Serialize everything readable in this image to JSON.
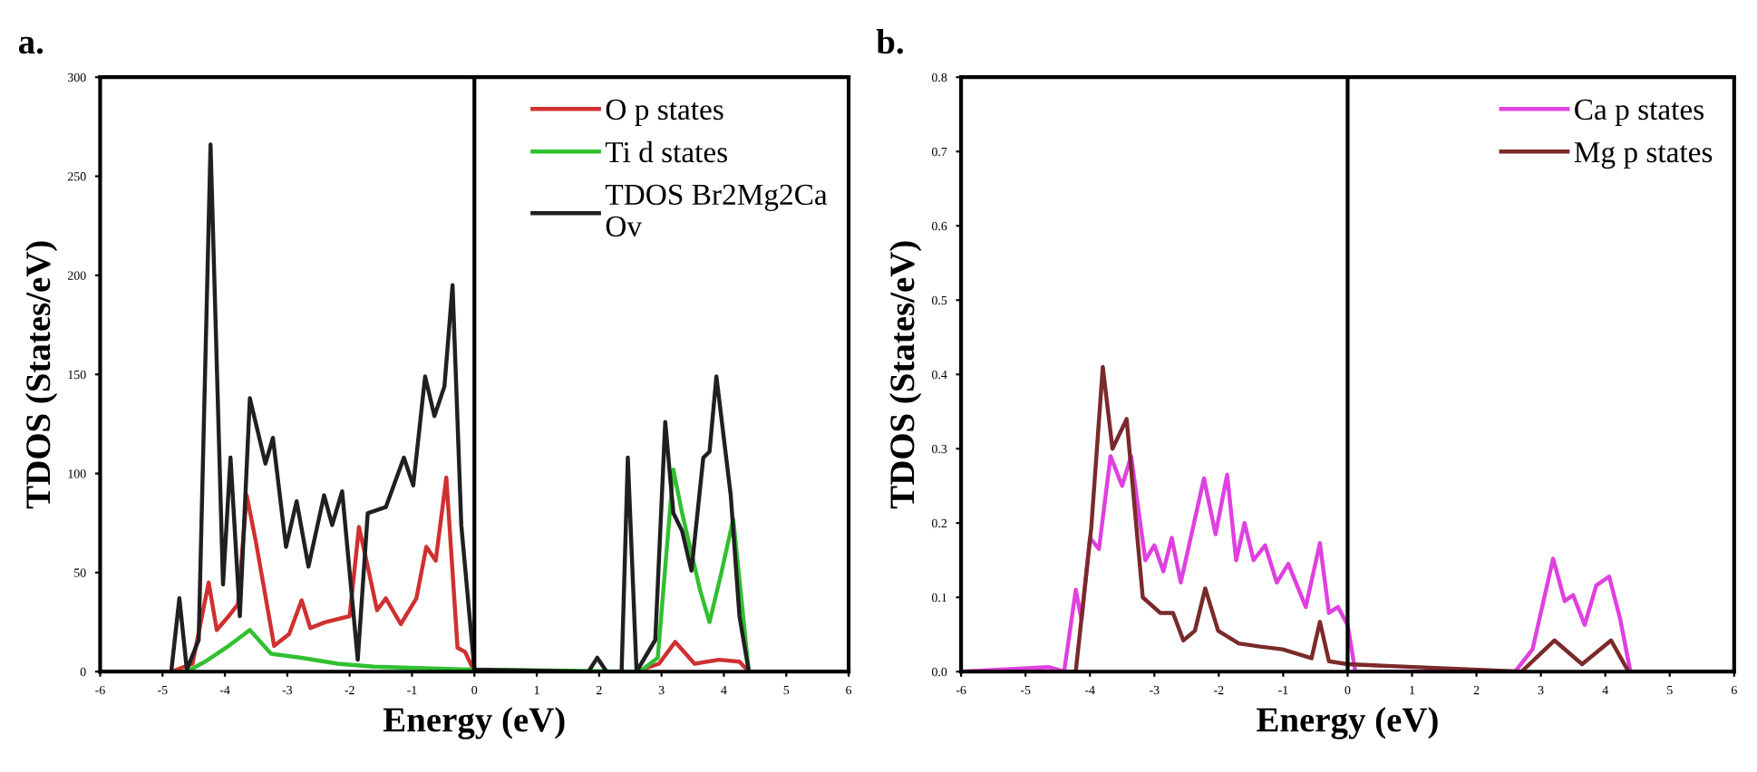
{
  "chart_data": [
    {
      "type": "line",
      "title": "a.",
      "xlabel": "Energy (eV)",
      "ylabel": "TDOS (States/eV)",
      "xlim": [
        -6,
        6
      ],
      "xticks": [
        -6,
        -5,
        -4,
        -3,
        -2,
        -1,
        0,
        1,
        2,
        3,
        4,
        5,
        6
      ],
      "ylim": [
        0,
        300
      ],
      "yticks": [
        0,
        50,
        100,
        150,
        200,
        250,
        300
      ],
      "grid": false,
      "legend": "top right",
      "marker": "none",
      "line_style": "solid",
      "ref_lines": [
        {
          "axis": "x",
          "value": 0,
          "label": null,
          "color": "#000000",
          "line_style": "solid"
        }
      ],
      "series": [
        {
          "name": "O p states",
          "color": "#d03030",
          "x": [
            -6,
            -4.86,
            -4.52,
            -4.26,
            -4.13,
            -3.94,
            -3.79,
            -3.65,
            -3.5,
            -3.21,
            -2.97,
            -2.77,
            -2.63,
            -2.39,
            -2.0,
            -1.85,
            -1.71,
            -1.56,
            -1.42,
            -1.18,
            -0.93,
            -0.77,
            -0.62,
            -0.45,
            -0.27,
            -0.15,
            0,
            2.58,
            2.96,
            3.22,
            3.53,
            3.92,
            4.25,
            4.4,
            6
          ],
          "values": [
            0,
            0,
            4,
            45,
            21,
            28,
            34,
            89,
            65,
            13,
            19,
            36,
            22,
            25,
            28,
            73,
            53,
            31,
            37,
            24,
            37,
            63,
            56,
            98,
            12,
            10,
            0,
            0,
            4,
            15,
            4,
            6,
            5,
            0,
            0
          ]
        },
        {
          "name": "Ti d states",
          "color": "#30c030",
          "x": [
            -6,
            -4.61,
            -4.32,
            -3.94,
            -3.6,
            -3.26,
            -2.77,
            -2.19,
            -1.61,
            0,
            2.65,
            2.94,
            3.19,
            3.33,
            3.62,
            3.77,
            3.96,
            4.15,
            4.4,
            6
          ],
          "values": [
            0,
            0,
            5,
            13,
            21,
            9,
            7,
            4,
            2.5,
            1,
            0,
            7,
            102,
            80,
            41,
            25,
            50,
            77,
            0,
            0
          ]
        },
        {
          "name": "TDOS Br2Mg2Ca\nOv",
          "color": "#202020",
          "x": [
            -6,
            -4.86,
            -4.73,
            -4.61,
            -4.42,
            -4.23,
            -4.03,
            -3.91,
            -3.76,
            -3.6,
            -3.35,
            -3.23,
            -3.02,
            -2.85,
            -2.66,
            -2.41,
            -2.28,
            -2.12,
            -1.87,
            -1.71,
            -1.42,
            -1.13,
            -0.98,
            -0.79,
            -0.64,
            -0.48,
            -0.35,
            -0.21,
            0,
            1.83,
            1.97,
            2.12,
            2.36,
            2.46,
            2.6,
            2.9,
            3.06,
            3.19,
            3.33,
            3.48,
            3.67,
            3.77,
            3.88,
            4.11,
            4.25,
            4.4,
            6
          ],
          "values": [
            0,
            0,
            37,
            1,
            16,
            266,
            44,
            108,
            28,
            138,
            105,
            118,
            63,
            86,
            53,
            89,
            74,
            91,
            6,
            80,
            83,
            108,
            94,
            149,
            129,
            144,
            195,
            74,
            1,
            0,
            7,
            0,
            0,
            108,
            0,
            16,
            126,
            80,
            71,
            51,
            108,
            111,
            149,
            89,
            28,
            0,
            0
          ]
        }
      ]
    },
    {
      "type": "line",
      "title": "b.",
      "xlabel": "Energy (eV)",
      "ylabel": "TDOS (States/eV)",
      "xlim": [
        -6,
        6
      ],
      "xticks": [
        -6,
        -5,
        -4,
        -3,
        -2,
        -1,
        0,
        1,
        2,
        3,
        4,
        5,
        6
      ],
      "ylim": [
        0,
        0.8
      ],
      "yticks": [
        {
          "value": 0,
          "label": "0.0"
        },
        0.1,
        0.2,
        0.3,
        0.4,
        0.5,
        0.6,
        0.7,
        0.8
      ],
      "grid": false,
      "legend": "top right",
      "marker": "none",
      "line_style": "solid",
      "ref_lines": [
        {
          "axis": "x",
          "value": 0,
          "label": null,
          "color": "#000000",
          "line_style": "solid"
        }
      ],
      "series": [
        {
          "name": "Ca p states",
          "color": "#e040e0",
          "x": [
            -6,
            -4.63,
            -4.4,
            -4.22,
            -4.13,
            -4.0,
            -3.86,
            -3.68,
            -3.5,
            -3.36,
            -3.14,
            -3.0,
            -2.86,
            -2.73,
            -2.59,
            -2.23,
            -2.05,
            -1.87,
            -1.73,
            -1.6,
            -1.46,
            -1.28,
            -1.1,
            -0.92,
            -0.65,
            -0.43,
            -0.29,
            -0.15,
            0,
            0.12,
            2.6,
            2.87,
            3.19,
            3.37,
            3.5,
            3.68,
            3.86,
            4.06,
            4.23,
            4.39,
            6
          ],
          "values": [
            0,
            0.006,
            0,
            0.11,
            0.07,
            0.18,
            0.165,
            0.29,
            0.25,
            0.29,
            0.15,
            0.17,
            0.135,
            0.18,
            0.12,
            0.26,
            0.185,
            0.265,
            0.15,
            0.2,
            0.15,
            0.17,
            0.12,
            0.145,
            0.087,
            0.173,
            0.079,
            0.087,
            0.063,
            0,
            0,
            0.03,
            0.152,
            0.095,
            0.103,
            0.063,
            0.116,
            0.128,
            0.071,
            0,
            0
          ]
        },
        {
          "name": "Mg p states",
          "color": "#7a2a2a",
          "x": [
            -6,
            -4.22,
            -3.98,
            -3.8,
            -3.65,
            -3.43,
            -3.18,
            -2.91,
            -2.71,
            -2.55,
            -2.37,
            -2.21,
            -2.01,
            -1.69,
            -1.38,
            -1.01,
            -0.56,
            -0.43,
            -0.29,
            0,
            2.7,
            3.21,
            3.64,
            4.09,
            4.36,
            6
          ],
          "values": [
            0,
            0,
            0.193,
            0.41,
            0.3,
            0.34,
            0.1,
            0.079,
            0.079,
            0.042,
            0.055,
            0.112,
            0.055,
            0.038,
            0.034,
            0.03,
            0.018,
            0.067,
            0.014,
            0.01,
            0,
            0.042,
            0.01,
            0.042,
            0,
            0
          ]
        }
      ]
    }
  ]
}
